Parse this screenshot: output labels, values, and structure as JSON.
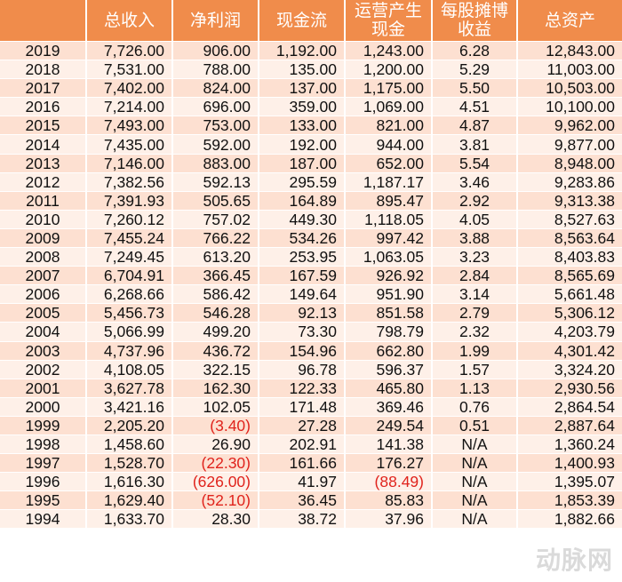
{
  "headers": [
    "",
    "总收入",
    "净利润",
    "现金流",
    "运营产生\n现金",
    "每股摊博\n收益",
    "总资产"
  ],
  "rows": [
    [
      "2019",
      "7,726.00",
      "906.00",
      "1,192.00",
      "1,243.00",
      "6.28",
      "12,843.00"
    ],
    [
      "2018",
      "7,531.00",
      "788.00",
      "135.00",
      "1,200.00",
      "5.29",
      "11,003.00"
    ],
    [
      "2017",
      "7,402.00",
      "824.00",
      "137.00",
      "1,175.00",
      "5.50",
      "10,503.00"
    ],
    [
      "2016",
      "7,214.00",
      "696.00",
      "359.00",
      "1,069.00",
      "4.51",
      "10,100.00"
    ],
    [
      "2015",
      "7,493.00",
      "753.00",
      "133.00",
      "821.00",
      "4.87",
      "9,962.00"
    ],
    [
      "2014",
      "7,435.00",
      "592.00",
      "192.00",
      "944.00",
      "3.81",
      "9,877.00"
    ],
    [
      "2013",
      "7,146.00",
      "883.00",
      "187.00",
      "652.00",
      "5.54",
      "8,948.00"
    ],
    [
      "2012",
      "7,382.56",
      "592.13",
      "295.59",
      "1,187.17",
      "3.46",
      "9,283.86"
    ],
    [
      "2011",
      "7,391.93",
      "505.65",
      "164.89",
      "895.47",
      "2.92",
      "9,313.38"
    ],
    [
      "2010",
      "7,260.12",
      "757.02",
      "449.30",
      "1,118.05",
      "4.05",
      "8,527.63"
    ],
    [
      "2009",
      "7,455.24",
      "766.22",
      "534.26",
      "997.42",
      "3.88",
      "8,563.64"
    ],
    [
      "2008",
      "7,249.45",
      "613.20",
      "253.95",
      "1,063.05",
      "3.23",
      "8,403.83"
    ],
    [
      "2007",
      "6,704.91",
      "366.45",
      "167.59",
      "926.92",
      "2.84",
      "8,565.69"
    ],
    [
      "2006",
      "6,268.66",
      "586.42",
      "149.64",
      "951.90",
      "3.14",
      "5,661.48"
    ],
    [
      "2005",
      "5,456.73",
      "546.28",
      "92.13",
      "851.58",
      "2.79",
      "5,306.12"
    ],
    [
      "2004",
      "5,066.99",
      "499.20",
      "73.30",
      "798.79",
      "2.32",
      "4,203.79"
    ],
    [
      "2003",
      "4,737.96",
      "436.72",
      "154.96",
      "662.80",
      "1.99",
      "4,301.42"
    ],
    [
      "2002",
      "4,108.05",
      "322.15",
      "96.78",
      "596.37",
      "1.57",
      "3,324.20"
    ],
    [
      "2001",
      "3,627.78",
      "162.30",
      "122.33",
      "465.80",
      "1.13",
      "2,930.56"
    ],
    [
      "2000",
      "3,421.16",
      "102.05",
      "171.48",
      "369.46",
      "0.76",
      "2,864.54"
    ],
    [
      "1999",
      "2,205.20",
      "(3.40)",
      "27.28",
      "249.54",
      "0.51",
      "2,887.64"
    ],
    [
      "1998",
      "1,458.60",
      "26.90",
      "202.91",
      "141.38",
      "N/A",
      "1,360.24"
    ],
    [
      "1997",
      "1,528.70",
      "(22.30)",
      "161.66",
      "176.27",
      "N/A",
      "1,400.93"
    ],
    [
      "1996",
      "1,616.30",
      "(626.00)",
      "41.97",
      "(88.49)",
      "N/A",
      "1,395.07"
    ],
    [
      "1995",
      "1,629.40",
      "(52.10)",
      "36.45",
      "85.83",
      "N/A",
      "1,853.39"
    ],
    [
      "1994",
      "1,633.70",
      "28.30",
      "38.72",
      "37.96",
      "N/A",
      "1,882.66"
    ]
  ],
  "colors": {
    "header_bg": "#f08c4b",
    "row_odd": "#fde0d1",
    "row_even": "#fef0e8",
    "negative": "#e0231c"
  },
  "watermark": "动脉网"
}
